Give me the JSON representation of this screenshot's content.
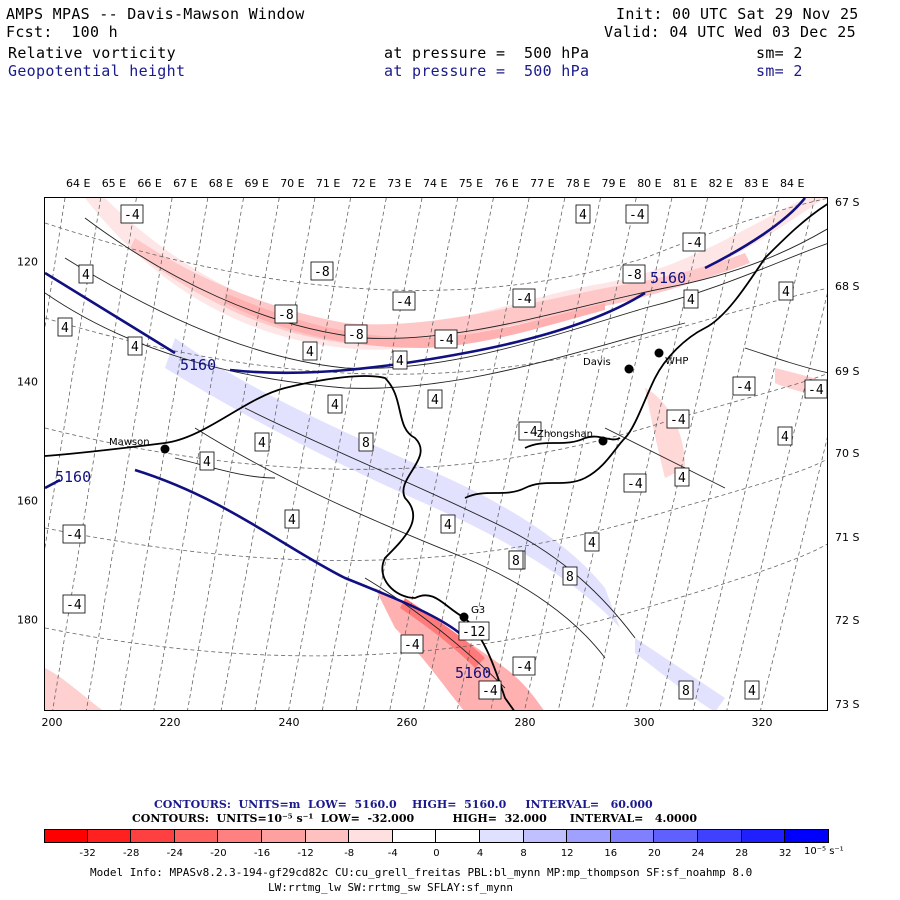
{
  "header": {
    "title": "AMPS MPAS -- Davis-Mawson Window",
    "fcst": "Fcst:  100 h",
    "init": "Init: 00 UTC Sat 29 Nov 25",
    "valid": "Valid: 04 UTC Wed 03 Dec 25",
    "field1_name": "Relative vorticity",
    "field1_level": "at pressure =  500 hPa",
    "field1_sm": "sm= 2",
    "field2_name": "Geopotential height",
    "field2_level": "at pressure =  500 hPa",
    "field2_sm": "sm= 2"
  },
  "map": {
    "longitude_labels": [
      "64 E",
      "65 E",
      "66 E",
      "67 E",
      "68 E",
      "69 E",
      "70 E",
      "71 E",
      "72 E",
      "73 E",
      "74 E",
      "75 E",
      "76 E",
      "77 E",
      "78 E",
      "79 E",
      "80 E",
      "81 E",
      "82 E",
      "83 E",
      "84 E"
    ],
    "latitude_labels": [
      "67 S",
      "68 S",
      "69 S",
      "70 S",
      "71 S",
      "72 S",
      "73 S"
    ],
    "x_tick_labels": [
      "200",
      "220",
      "240",
      "260",
      "280",
      "300",
      "320"
    ],
    "y_tick_labels": [
      "120",
      "140",
      "160",
      "180"
    ],
    "stations": [
      {
        "name": "Mawson"
      },
      {
        "name": "Davis"
      },
      {
        "name": "WHP"
      },
      {
        "name": "Zhongshan"
      },
      {
        "name": "G3"
      }
    ],
    "height_contour_label": "5160",
    "vorticity_labels": [
      "-4",
      "-8",
      "-12",
      "4",
      "8"
    ]
  },
  "colorbar_info": {
    "line1": "CONTOURS:  UNITS=m  LOW=  5160.0    HIGH=  5160.0     INTERVAL=   60.000",
    "line2": "CONTOURS:  UNITS=10⁻⁵ s⁻¹  LOW=  -32.000          HIGH=  32.000      INTERVAL=   4.0000"
  },
  "colorbar": {
    "ticks": [
      "-32",
      "-28",
      "-24",
      "-20",
      "-16",
      "-12",
      "-8",
      "-4",
      "0",
      "4",
      "8",
      "12",
      "16",
      "20",
      "24",
      "28",
      "32"
    ],
    "units": "10⁻⁵ s⁻¹",
    "colors": [
      "#ff0000",
      "#ff2020",
      "#ff4040",
      "#ff6060",
      "#ff8080",
      "#ffa0a0",
      "#ffc0c0",
      "#ffe0e0",
      "#ffffff",
      "#ffffff",
      "#e0e0ff",
      "#c0c0ff",
      "#a0a0ff",
      "#8080ff",
      "#6060ff",
      "#4040ff",
      "#2020ff",
      "#0000ff"
    ]
  },
  "model_info": {
    "line1": "Model Info: MPASv8.2.3-194-gf29cd82c CU:cu_grell_freitas PBL:bl_mynn MP:mp_thompson SF:sf_noahmp 8.0",
    "line2": "LW:rrtmg_lw SW:rrtmg_sw SFLAY:sf_mynn"
  }
}
